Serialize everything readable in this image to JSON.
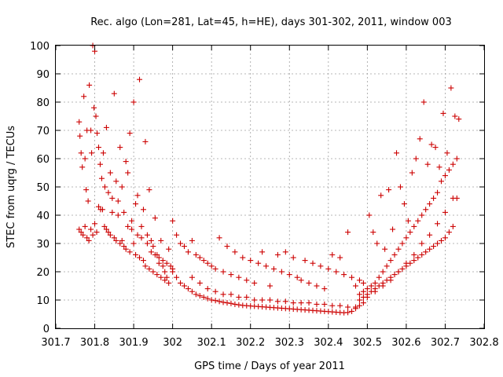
{
  "chart_data": {
    "type": "scatter",
    "title": "Rec. algo (Lon=281, Lat=45, h=HE), days 301-302, 2011, window 003",
    "xlabel": "GPS time / Days of year 2011",
    "ylabel": "STEC from uqrg / TECUs",
    "xlim": [
      301.7,
      302.8
    ],
    "ylim": [
      0,
      100
    ],
    "x_ticks": [
      301.7,
      301.8,
      301.9,
      302.0,
      302.1,
      302.2,
      302.3,
      302.4,
      302.5,
      302.6,
      302.7,
      302.8
    ],
    "x_tick_labels": [
      "301.7",
      "301.8",
      "301.9",
      "302",
      "302.1",
      "302.2",
      "302.3",
      "302.4",
      "302.5",
      "302.6",
      "302.7",
      "302.8"
    ],
    "y_ticks": [
      0,
      10,
      20,
      30,
      40,
      50,
      60,
      70,
      80,
      90,
      100
    ],
    "y_tick_labels": [
      "0",
      "10",
      "20",
      "30",
      "40",
      "50",
      "60",
      "70",
      "80",
      "90",
      "100"
    ],
    "grid": true,
    "marker": "+",
    "marker_color": "#cc0000",
    "series": [
      {
        "x": [
          301.76,
          301.762,
          301.765,
          301.768,
          301.772,
          301.775,
          301.778,
          301.78,
          301.783,
          301.786,
          301.79,
          301.792,
          301.795,
          301.798,
          301.8,
          301.803,
          301.806,
          301.81,
          301.814,
          301.818,
          301.822,
          301.826,
          301.83,
          301.835,
          301.84,
          301.845,
          301.85,
          301.855,
          301.86,
          301.865,
          301.87,
          301.875,
          301.88,
          301.885,
          301.89,
          301.895,
          301.9,
          301.905,
          301.91,
          301.915,
          301.92,
          301.925,
          301.93,
          301.935,
          301.94,
          301.945,
          301.95,
          301.955,
          301.96,
          301.965,
          301.97,
          301.975,
          301.98,
          301.985,
          301.99
        ],
        "y": [
          73,
          68,
          62,
          57,
          82,
          60,
          49,
          70,
          45,
          86,
          70,
          62,
          100,
          78,
          98,
          75,
          69,
          64,
          58,
          53,
          62,
          50,
          71,
          48,
          55,
          46,
          83,
          52,
          45,
          64,
          50,
          41,
          59,
          55,
          69,
          38,
          80,
          44,
          47,
          88,
          36,
          42,
          66,
          33,
          49,
          31,
          29,
          39,
          26,
          23,
          31,
          22,
          20,
          18,
          28
        ]
      },
      {
        "x": [
          301.76,
          301.765,
          301.77,
          301.775,
          301.78,
          301.785,
          301.79,
          301.795,
          301.8,
          301.805,
          301.81,
          301.815,
          301.82,
          301.825,
          301.83,
          301.835,
          301.84,
          301.845,
          301.85,
          301.855,
          301.86,
          301.865,
          301.87,
          301.875,
          301.88,
          301.885,
          301.89,
          301.895,
          301.9,
          301.905,
          301.91,
          301.915,
          301.92,
          301.925,
          301.93,
          301.935,
          301.94,
          301.945,
          301.95,
          301.955,
          301.96,
          301.965,
          301.97,
          301.975,
          301.98,
          301.985,
          301.99,
          301.995,
          302.0
        ],
        "y": [
          35,
          34,
          33,
          36,
          32,
          31,
          35,
          33,
          37,
          34,
          43,
          42,
          42,
          36,
          35,
          34,
          33,
          41,
          32,
          31,
          40,
          30,
          31,
          29,
          28,
          36,
          27,
          35,
          30,
          26,
          33,
          25,
          32,
          24,
          22,
          30,
          21,
          27,
          20,
          26,
          19,
          25,
          18,
          24,
          17,
          23,
          16,
          22,
          21
        ]
      },
      {
        "x": [
          302.0,
          302.01,
          302.02,
          302.03,
          302.04,
          302.05,
          302.06,
          302.07,
          302.08,
          302.09,
          302.1,
          302.11,
          302.12,
          302.13,
          302.14,
          302.15,
          302.16,
          302.17,
          302.18,
          302.19,
          302.2,
          302.21,
          302.22,
          302.23,
          302.24,
          302.25,
          302.26,
          302.27,
          302.28,
          302.29,
          302.3,
          302.31,
          302.32,
          302.33,
          302.34,
          302.35,
          302.36,
          302.37,
          302.38,
          302.39,
          302.4,
          302.41,
          302.42,
          302.43,
          302.44,
          302.45,
          302.46,
          302.47,
          302.48,
          302.49
        ],
        "y": [
          38,
          33,
          30,
          29,
          27,
          31,
          26,
          25,
          24,
          23,
          22,
          21,
          32,
          20,
          29,
          19,
          27,
          18,
          25,
          17,
          24,
          16,
          23,
          27,
          22,
          15,
          21,
          26,
          20,
          27,
          19,
          25,
          18,
          17,
          24,
          16,
          23,
          15,
          22,
          14,
          21,
          26,
          20,
          25,
          19,
          34,
          18,
          15,
          17,
          16
        ]
      },
      {
        "x": [
          302.0,
          302.01,
          302.02,
          302.03,
          302.04,
          302.05,
          302.06,
          302.07,
          302.08,
          302.09,
          302.1,
          302.11,
          302.12,
          302.13,
          302.14,
          302.15,
          302.16,
          302.17,
          302.18,
          302.19,
          302.2,
          302.21,
          302.22,
          302.23,
          302.24,
          302.25,
          302.26,
          302.27,
          302.28,
          302.29,
          302.3,
          302.31,
          302.32,
          302.33,
          302.34,
          302.35,
          302.36,
          302.37,
          302.38,
          302.39,
          302.4,
          302.41,
          302.42,
          302.43,
          302.44,
          302.45,
          302.46,
          302.47,
          302.48,
          302.49
        ],
        "y": [
          20,
          18,
          16,
          15,
          14,
          13,
          12,
          11.5,
          11,
          10.5,
          10,
          9.8,
          9.5,
          9.2,
          9,
          8.8,
          8.5,
          8.3,
          8.1,
          8,
          7.9,
          7.8,
          7.7,
          7.6,
          7.5,
          7.4,
          7.3,
          7.2,
          7.1,
          7,
          6.9,
          6.8,
          6.7,
          6.6,
          6.5,
          6.4,
          6.3,
          6.2,
          6.1,
          6,
          5.9,
          5.8,
          5.7,
          5.6,
          5.5,
          5.6,
          6,
          7,
          8,
          9
        ]
      },
      {
        "x": [
          302.05,
          302.07,
          302.09,
          302.11,
          302.13,
          302.15,
          302.17,
          302.19,
          302.21,
          302.23,
          302.25,
          302.27,
          302.29,
          302.31,
          302.33,
          302.35,
          302.37,
          302.39,
          302.41,
          302.43,
          302.45,
          302.47
        ],
        "y": [
          18,
          16,
          14,
          13,
          12,
          12,
          11,
          11,
          10,
          10,
          10,
          9.5,
          9.5,
          9,
          9,
          9,
          8.5,
          8.5,
          8,
          8,
          7.5,
          7.5
        ]
      },
      {
        "x": [
          302.48,
          302.49,
          302.5,
          302.505,
          302.51,
          302.515,
          302.52,
          302.525,
          302.53,
          302.535,
          302.54,
          302.545,
          302.55,
          302.555,
          302.56,
          302.565,
          302.57,
          302.575,
          302.58,
          302.585,
          302.59,
          302.595,
          302.6,
          302.605,
          302.61,
          302.615,
          302.62,
          302.625,
          302.63,
          302.635,
          302.64,
          302.645,
          302.65,
          302.655,
          302.66,
          302.665,
          302.67,
          302.675,
          302.68,
          302.685,
          302.69,
          302.695,
          302.7,
          302.705,
          302.71,
          302.715,
          302.72,
          302.725,
          302.73,
          302.735
        ],
        "y": [
          12,
          13,
          14,
          40,
          15,
          34,
          16,
          30,
          18,
          47,
          20,
          28,
          22,
          49,
          24,
          35,
          26,
          62,
          28,
          50,
          30,
          44,
          32,
          38,
          34,
          55,
          36,
          60,
          38,
          67,
          40,
          80,
          42,
          58,
          44,
          65,
          46,
          64,
          48,
          57,
          52,
          76,
          54,
          62,
          56,
          85,
          58,
          75,
          60,
          74
        ]
      },
      {
        "x": [
          302.48,
          302.49,
          302.5,
          302.51,
          302.52,
          302.53,
          302.54,
          302.55,
          302.56,
          302.57,
          302.58,
          302.59,
          302.6,
          302.61,
          302.62,
          302.63,
          302.64,
          302.65,
          302.66,
          302.67,
          302.68,
          302.69,
          302.7,
          302.71,
          302.72,
          302.73
        ],
        "y": [
          10,
          11,
          12,
          13,
          14,
          15,
          16,
          17,
          18,
          19,
          20,
          21,
          22,
          23,
          24,
          25,
          26,
          27,
          28,
          29,
          30,
          31,
          32,
          34,
          36,
          46
        ]
      },
      {
        "x": [
          302.5,
          302.52,
          302.54,
          302.56,
          302.58,
          302.6,
          302.62,
          302.64,
          302.66,
          302.68,
          302.7,
          302.72
        ],
        "y": [
          11,
          13,
          15,
          17,
          20,
          23,
          26,
          30,
          33,
          37,
          41,
          46
        ]
      }
    ]
  }
}
